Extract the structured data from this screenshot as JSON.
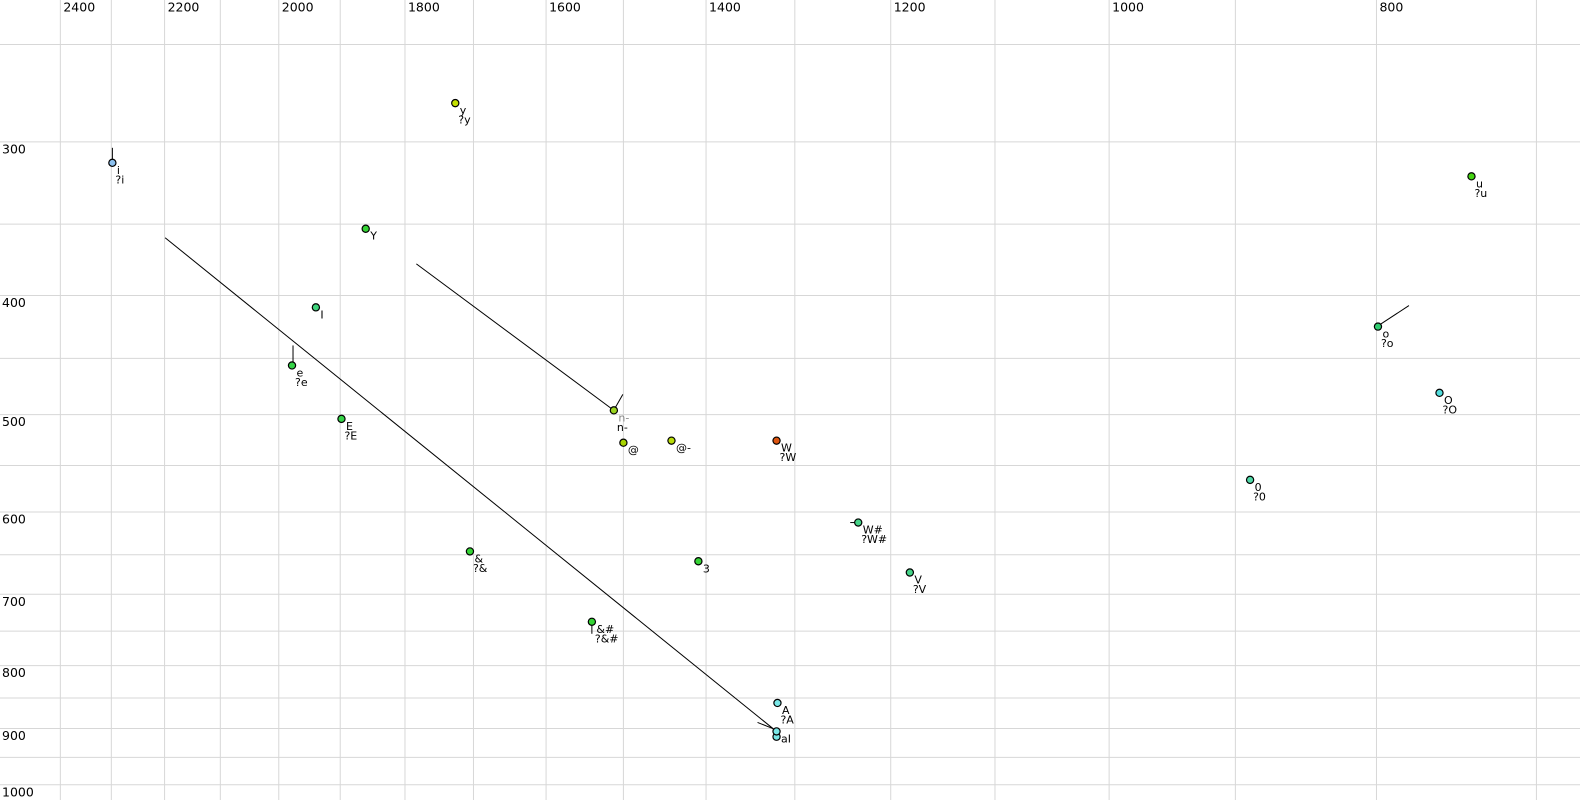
{
  "colors": {
    "background": "#ffffff",
    "grid": "#d7d7d7",
    "label": "#000000",
    "muted_label": "#8a8a8a",
    "line": "#000000"
  },
  "chart_data": {
    "type": "scatter",
    "title": "",
    "xlabel": "",
    "ylabel": "",
    "grid": true,
    "x_axis": {
      "scale": "log",
      "reversed": true,
      "domain": [
        2524,
        675
      ],
      "tick_labels": [
        2400,
        2200,
        2000,
        1800,
        1600,
        1400,
        1200,
        1000,
        800
      ],
      "gridline_step": 100,
      "gridline_range": [
        2400,
        700
      ]
    },
    "y_axis": {
      "scale": "log",
      "domain": [
        230,
        1029
      ],
      "tick_labels": [
        300,
        400,
        500,
        600,
        700,
        800,
        900,
        1000
      ],
      "gridline_step": 50,
      "gridline_range": [
        250,
        1000
      ]
    },
    "points": [
      {
        "id": "y",
        "labels": [
          "y",
          "?y"
        ],
        "f2": 1726,
        "f1": 279,
        "color": "#c4e000"
      },
      {
        "id": "i",
        "labels": [
          "i",
          "?i"
        ],
        "f2": 2298,
        "f1": 312,
        "color": "#8cc0ee",
        "tail": [
          [
            0,
            -15
          ],
          [
            0,
            -2
          ]
        ]
      },
      {
        "id": "u",
        "labels": [
          "u",
          "?u"
        ],
        "f2": 739,
        "f1": 320,
        "color": "#44d411"
      },
      {
        "id": "Y",
        "labels": [
          "Y"
        ],
        "f2": 1860,
        "f1": 353,
        "color": "#35d435"
      },
      {
        "id": "I",
        "labels": [
          "I"
        ],
        "f2": 1939,
        "f1": 409,
        "color": "#40d47c"
      },
      {
        "id": "e",
        "labels": [
          "e",
          "?e"
        ],
        "f2": 1978,
        "f1": 456,
        "color": "#35d448",
        "tail": [
          [
            1,
            -20
          ],
          [
            1,
            -3
          ]
        ]
      },
      {
        "id": "o",
        "labels": [
          "o",
          "?o"
        ],
        "f2": 799,
        "f1": 424,
        "color": "#30cc70",
        "tail": [
          [
            31,
            -21
          ],
          [
            2,
            -2
          ]
        ]
      },
      {
        "id": "E",
        "labels": [
          "E",
          "?E"
        ],
        "f2": 1898,
        "f1": 504,
        "color": "#35d448"
      },
      {
        "id": "O",
        "labels": [
          "O",
          "?O"
        ],
        "f2": 759,
        "f1": 480,
        "color": "#52dede"
      },
      {
        "id": "n-",
        "labels": [
          "n-",
          "n-"
        ],
        "label_colors": [
          "#8a8a8a",
          "#000000"
        ],
        "f2": 1512,
        "f1": 496,
        "color": "#9ad41f",
        "tail": [
          [
            9,
            -16
          ],
          [
            1,
            -2
          ]
        ]
      },
      {
        "id": "@",
        "labels": [
          "@"
        ],
        "f2": 1500,
        "f1": 527,
        "color": "#a8d400"
      },
      {
        "id": "@-",
        "labels": [
          "@-"
        ],
        "f2": 1441,
        "f1": 525,
        "color": "#b8dc08"
      },
      {
        "id": "W",
        "labels": [
          "W",
          "?W"
        ],
        "f2": 1320,
        "f1": 525,
        "color": "#dd5510"
      },
      {
        "id": "0",
        "labels": [
          "0",
          "?0"
        ],
        "f2": 889,
        "f1": 565,
        "color": "#50d8a8"
      },
      {
        "id": "W#",
        "labels": [
          "W#",
          "?W#"
        ],
        "f2": 1233,
        "f1": 612,
        "color": "#45d488",
        "tail": [
          [
            -8,
            0
          ],
          [
            -1,
            0
          ]
        ]
      },
      {
        "id": "&",
        "labels": [
          "&",
          "?&"
        ],
        "f2": 1705,
        "f1": 646,
        "color": "#35d435"
      },
      {
        "id": "3",
        "labels": [
          "3"
        ],
        "f2": 1409,
        "f1": 658,
        "color": "#35d435"
      },
      {
        "id": "V",
        "labels": [
          "V",
          "?V"
        ],
        "f2": 1181,
        "f1": 672,
        "color": "#45d488"
      },
      {
        "id": "&#",
        "labels": [
          "&#",
          "?&#"
        ],
        "f2": 1540,
        "f1": 737,
        "color": "#35d435",
        "tail": [
          [
            0,
            2
          ],
          [
            0,
            12
          ]
        ]
      },
      {
        "id": "A",
        "labels": [
          "A",
          "?A"
        ],
        "f2": 1319,
        "f1": 858,
        "color": "#7ae8e8"
      },
      {
        "id": "aI-2",
        "labels": [],
        "f2": 1320,
        "f1": 914,
        "color": "#7ae8e8"
      },
      {
        "id": "aI",
        "labels": [
          "aI"
        ],
        "f2": 1320,
        "f1": 905,
        "color": "#7ae8e8"
      }
    ],
    "lines": [
      {
        "from": [
          2199,
          359
        ],
        "to": [
          1320,
          905
        ],
        "hook": [
          [
            -19,
            -9
          ],
          [
            -4,
            -3
          ],
          [
            0,
            0
          ]
        ]
      },
      {
        "from": [
          1783,
          377
        ],
        "to": [
          1512,
          496
        ]
      }
    ]
  }
}
